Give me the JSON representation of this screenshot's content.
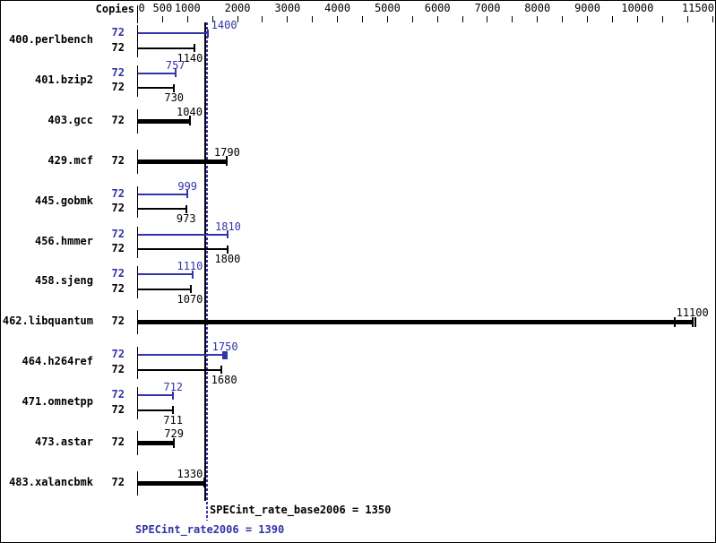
{
  "header": {
    "copies_label": "Copies"
  },
  "chart_data": {
    "type": "bar",
    "orientation": "horizontal",
    "xlabel": "",
    "ylabel": "Copies",
    "x_axis": {
      "range": [
        0,
        11500
      ],
      "major_tick_values": [
        0,
        500,
        1000,
        2000,
        3000,
        4000,
        5000,
        6000,
        7000,
        8000,
        9000,
        10000,
        11500
      ],
      "major_tick_labels": [
        "0",
        "500",
        "1000",
        "2000",
        "3000",
        "4000",
        "5000",
        "6000",
        "7000",
        "8000",
        "9000",
        "10000",
        "11500"
      ],
      "minor_tick_step": 500
    },
    "colors": {
      "peak": "#3333aa",
      "base": "#000000",
      "background": "#ffffff"
    },
    "benchmarks": [
      {
        "name": "400.perlbench",
        "bars": [
          {
            "type": "peak",
            "copies": "72",
            "value": 1400,
            "label": "1400"
          },
          {
            "type": "base",
            "copies": "72",
            "value": 1140,
            "label": "1140"
          }
        ]
      },
      {
        "name": "401.bzip2",
        "bars": [
          {
            "type": "peak",
            "copies": "72",
            "value": 757,
            "label": "757"
          },
          {
            "type": "base",
            "copies": "72",
            "value": 730,
            "label": "730"
          }
        ]
      },
      {
        "name": "403.gcc",
        "bars": [
          {
            "type": "base+peak",
            "copies": "72",
            "value": 1040,
            "label": "1040"
          }
        ]
      },
      {
        "name": "429.mcf",
        "bars": [
          {
            "type": "base+peak",
            "copies": "72",
            "value": 1790,
            "label": "1790"
          }
        ]
      },
      {
        "name": "445.gobmk",
        "bars": [
          {
            "type": "peak",
            "copies": "72",
            "value": 999,
            "label": "999"
          },
          {
            "type": "base",
            "copies": "72",
            "value": 973,
            "label": "973"
          }
        ]
      },
      {
        "name": "456.hmmer",
        "bars": [
          {
            "type": "peak",
            "copies": "72",
            "value": 1810,
            "label": "1810"
          },
          {
            "type": "base",
            "copies": "72",
            "value": 1800,
            "label": "1800"
          }
        ]
      },
      {
        "name": "458.sjeng",
        "bars": [
          {
            "type": "peak",
            "copies": "72",
            "value": 1110,
            "label": "1110"
          },
          {
            "type": "base",
            "copies": "72",
            "value": 1070,
            "label": "1070"
          }
        ]
      },
      {
        "name": "462.libquantum",
        "bars": [
          {
            "type": "base+peak",
            "copies": "72",
            "value": 11100,
            "label": "11100",
            "run_marker_values": [
              10740,
              11160
            ]
          }
        ]
      },
      {
        "name": "464.h264ref",
        "bars": [
          {
            "type": "peak",
            "copies": "72",
            "value": 1750,
            "label": "1750",
            "run_marker_values": [
              1710,
              1780
            ]
          },
          {
            "type": "base",
            "copies": "72",
            "value": 1680,
            "label": "1680"
          }
        ]
      },
      {
        "name": "471.omnetpp",
        "bars": [
          {
            "type": "peak",
            "copies": "72",
            "value": 712,
            "label": "712"
          },
          {
            "type": "base",
            "copies": "72",
            "value": 711,
            "label": "711"
          }
        ]
      },
      {
        "name": "473.astar",
        "bars": [
          {
            "type": "base+peak",
            "copies": "72",
            "value": 729,
            "label": "729"
          }
        ]
      },
      {
        "name": "483.xalancbmk",
        "bars": [
          {
            "type": "base+peak",
            "copies": "72",
            "value": 1330,
            "label": "1330"
          }
        ]
      }
    ],
    "reference_lines": [
      {
        "label": "SPECint_rate_base2006 = 1350",
        "value": 1350,
        "style": "solid",
        "color": "#000000"
      },
      {
        "label": "SPECint_rate2006 = 1390",
        "value": 1390,
        "style": "dotted",
        "color": "#3333aa"
      }
    ]
  }
}
